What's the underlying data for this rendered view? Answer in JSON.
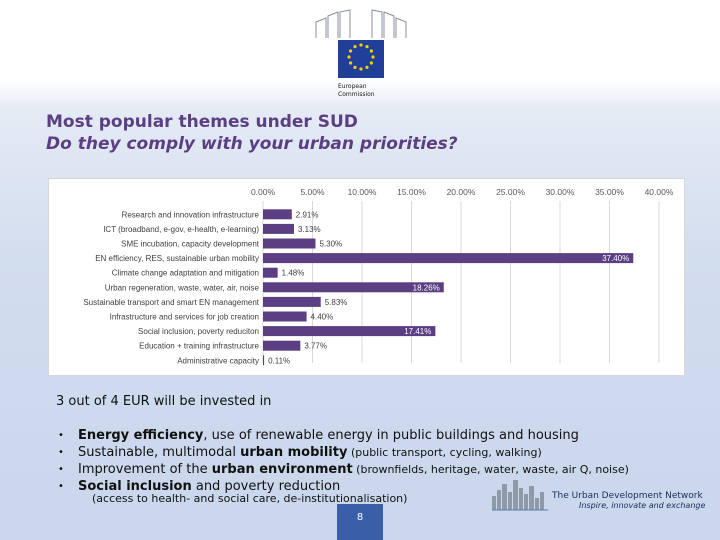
{
  "logo": {
    "line1": "European",
    "line2": "Commission"
  },
  "title": "Most popular themes under SUD",
  "subtitle": "Do they comply with your urban priorities?",
  "chart_data": {
    "type": "bar",
    "orientation": "horizontal",
    "axis_position": "top",
    "xlim": [
      0,
      40
    ],
    "x_ticks": [
      "0.00%",
      "5.00%",
      "10.00%",
      "15.00%",
      "20.00%",
      "25.00%",
      "30.00%",
      "35.00%",
      "40.00%"
    ],
    "categories": [
      "Research and innovation infrastructure",
      "ICT (broadband, e-gov, e-health, e-learning)",
      "SME incubation, capacity development",
      "EN efficiency, RES, sustainable urban mobility",
      "Climate change adaptation and mitigation",
      "Urban regeneration, waste, water, air, noise",
      "Sustainable transport and smart EN management",
      "Infrastructure and services for job creation",
      "Social inclusion, poverty reduciton",
      "Education + training infrastructure",
      "Administrative capacity"
    ],
    "values": [
      2.91,
      3.13,
      5.3,
      37.4,
      1.48,
      18.26,
      5.83,
      4.4,
      17.41,
      3.77,
      0.11
    ],
    "value_labels": [
      "2.91%",
      "3.13%",
      "5.30%",
      "37.40%",
      "1.48%",
      "18.26%",
      "5.83%",
      "4.40%",
      "17.41%",
      "3.77%",
      "0.11%"
    ],
    "bar_color": "#5b3f82",
    "grid": true
  },
  "intro": {
    "prefix": "3 out of 4 EUR",
    "suffix": " will be invested in"
  },
  "bullets": [
    {
      "strong": "Energy efficiency",
      "rest": ", use of renewable energy in public buildings and housing",
      "small": ""
    },
    {
      "pre": "Sustainable, multimodal ",
      "strong": "urban mobility",
      "small": " (public transport, cycling, walking)"
    },
    {
      "pre": "Improvement of the ",
      "strong": "urban environment",
      "small": " (brownfields, heritage, water, waste, air Q, noise)"
    },
    {
      "strong": "Social inclusion",
      "rest": " and poverty reduction",
      "small": ""
    }
  ],
  "bullet_glyph": "•",
  "note": "(access to health- and social care, de-institutionalisation)",
  "network": {
    "title": "The Urban Development Network",
    "tagline": "Inspire, innovate and exchange"
  },
  "page_number": "8"
}
